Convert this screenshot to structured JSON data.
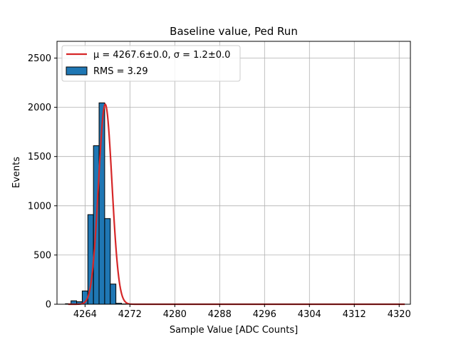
{
  "chart_data": {
    "type": "bar",
    "title": "Baseline value, Ped Run",
    "xlabel": "Sample Value [ADC Counts]",
    "ylabel": "Events",
    "xlim": [
      4259,
      4322
    ],
    "ylim": [
      0,
      2670
    ],
    "xticks": [
      4264,
      4272,
      4280,
      4288,
      4296,
      4304,
      4312,
      4320
    ],
    "yticks": [
      0,
      500,
      1000,
      1500,
      2000,
      2500
    ],
    "grid": true,
    "legend_position": "top-left",
    "bar_color": "#1f77b4",
    "fit_color": "#d62728",
    "histogram": {
      "name": "RMS = 3.29",
      "bin_width": 1,
      "bins": [
        {
          "x": 4261,
          "count": 5
        },
        {
          "x": 4262,
          "count": 35
        },
        {
          "x": 4263,
          "count": 25
        },
        {
          "x": 4264,
          "count": 135
        },
        {
          "x": 4265,
          "count": 910
        },
        {
          "x": 4266,
          "count": 1610
        },
        {
          "x": 4267,
          "count": 2045
        },
        {
          "x": 4268,
          "count": 870
        },
        {
          "x": 4269,
          "count": 205
        },
        {
          "x": 4270,
          "count": 10
        },
        {
          "x": 4271,
          "count": 3
        },
        {
          "x": 4316,
          "count": 3
        }
      ]
    },
    "fit": {
      "name": "μ = 4267.6±0.0, σ = 1.2±0.0",
      "mu": 4267.6,
      "sigma": 1.2,
      "amplitude": 2030
    }
  }
}
